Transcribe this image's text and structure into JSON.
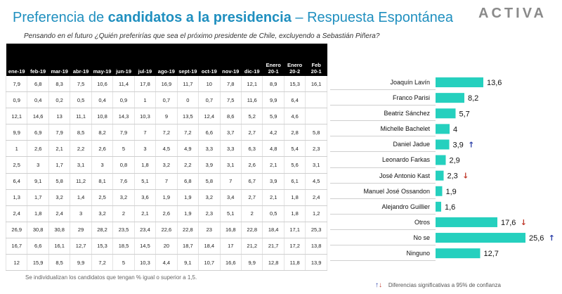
{
  "header": {
    "title_part1": "Preferencia de ",
    "title_bold": "candidatos a la presidencia",
    "title_part2": " – Respuesta Espontánea",
    "logo": "ACTIVA",
    "subtitle": "Pensando en el futuro ¿Quién preferirías que sea el próximo presidente de Chile, excluyendo a Sebastián Piñera?"
  },
  "footnote": "Se individualizan los candidatos que tengan % igual o superior a 1,5.",
  "legend": {
    "up_icon": "arrow-up-icon",
    "down_icon": "arrow-down-icon",
    "text": "Diferencias  significativas a 95% de confianza",
    "up_color": "#2b3fa8",
    "down_color": "#c0392b"
  },
  "colors": {
    "bar": "#25d0be",
    "title": "#1f8fbf"
  },
  "chart_data": {
    "type": "bar",
    "orientation": "horizontal",
    "categories": [
      "Joaquín Lavín",
      "Franco Parisi",
      "Beatriz Sánchez",
      "Michelle Bachelet",
      "Daniel Jadue",
      "Leonardo Farkas",
      "José Antonio Kast",
      "Manuel José  Ossandon",
      "Alejandro Guillier",
      "Otros",
      "No se",
      "Ninguno"
    ],
    "values": [
      13.6,
      8.2,
      5.7,
      4,
      3.9,
      2.9,
      2.3,
      1.9,
      1.6,
      17.6,
      25.6,
      12.7
    ],
    "value_labels": [
      "13,6",
      "8,2",
      "5,7",
      "4",
      "3,9",
      "2,9",
      "2,3",
      "1,9",
      "1,6",
      "17,6",
      "25,6",
      "12,7"
    ],
    "significance": [
      "",
      "",
      "",
      "",
      "up",
      "",
      "down",
      "",
      "",
      "down",
      "up",
      ""
    ],
    "xlim": [
      0,
      25.6
    ]
  },
  "history": {
    "columns": [
      "ene-19",
      "feb-19",
      "mar-19",
      "abr-19",
      "may-19",
      "jun-19",
      "jul-19",
      "ago-19",
      "sept-19",
      "oct-19",
      "nov-19",
      "dic-19",
      "Enero\n20-1",
      "Enero\n20-2",
      "Feb\n20-1"
    ],
    "rows": [
      [
        "7,9",
        "6,8",
        "8,3",
        "7,5",
        "10,6",
        "11,4",
        "17,8",
        "16,9",
        "11,7",
        "10",
        "7,8",
        "12,1",
        "8,9",
        "15,3",
        "16,1"
      ],
      [
        "0,9",
        "0,4",
        "0,2",
        "0,5",
        "0,4",
        "0,9",
        "1",
        "0,7",
        "0",
        "0,7",
        "7,5",
        "11,6",
        "9,9",
        "6,4",
        ""
      ],
      [
        "12,1",
        "14,6",
        "13",
        "11,1",
        "10,8",
        "14,3",
        "10,3",
        "9",
        "13,5",
        "12,4",
        "8,6",
        "5,2",
        "5,9",
        "4,6",
        ""
      ],
      [
        "9,9",
        "6,9",
        "7,9",
        "8,5",
        "8,2",
        "7,9",
        "7",
        "7,2",
        "7,2",
        "6,6",
        "3,7",
        "2,7",
        "4,2",
        "2,8",
        "5,8"
      ],
      [
        "1",
        "2,6",
        "2,1",
        "2,2",
        "2,6",
        "5",
        "3",
        "4,5",
        "4,9",
        "3,3",
        "3,3",
        "6,3",
        "4,8",
        "5,4",
        "2,3"
      ],
      [
        "2,5",
        "3",
        "1,7",
        "3,1",
        "3",
        "0,8",
        "1,8",
        "3,2",
        "2,2",
        "3,9",
        "3,1",
        "2,6",
        "2,1",
        "5,6",
        "3,1"
      ],
      [
        "6,4",
        "9,1",
        "5,8",
        "11,2",
        "8,1",
        "7,6",
        "5,1",
        "7",
        "6,8",
        "5,8",
        "7",
        "6,7",
        "3,9",
        "6,1",
        "4,5"
      ],
      [
        "1,3",
        "1,7",
        "3,2",
        "1,4",
        "2,5",
        "3,2",
        "3,6",
        "1,9",
        "1,9",
        "3,2",
        "3,4",
        "2,7",
        "2,1",
        "1,8",
        "2,4"
      ],
      [
        "2,4",
        "1,8",
        "2,4",
        "3",
        "3,2",
        "2",
        "2,1",
        "2,6",
        "1,9",
        "2,3",
        "5,1",
        "2",
        "0,5",
        "1,8",
        "1,2"
      ],
      [
        "26,9",
        "30,8",
        "30,8",
        "29",
        "28,2",
        "23,5",
        "23,4",
        "22,6",
        "22,8",
        "23",
        "16,8",
        "22,8",
        "18,4",
        "17,1",
        "25,3"
      ],
      [
        "16,7",
        "6,6",
        "16,1",
        "12,7",
        "15,3",
        "18,5",
        "14,5",
        "20",
        "18,7",
        "18,4",
        "17",
        "21,2",
        "21,7",
        "17,2",
        "13,8"
      ],
      [
        "12",
        "15,9",
        "8,5",
        "9,9",
        "7,2",
        "5",
        "10,3",
        "4,4",
        "9,1",
        "10,7",
        "16,6",
        "9,9",
        "12,8",
        "11,8",
        "13,9"
      ]
    ]
  }
}
